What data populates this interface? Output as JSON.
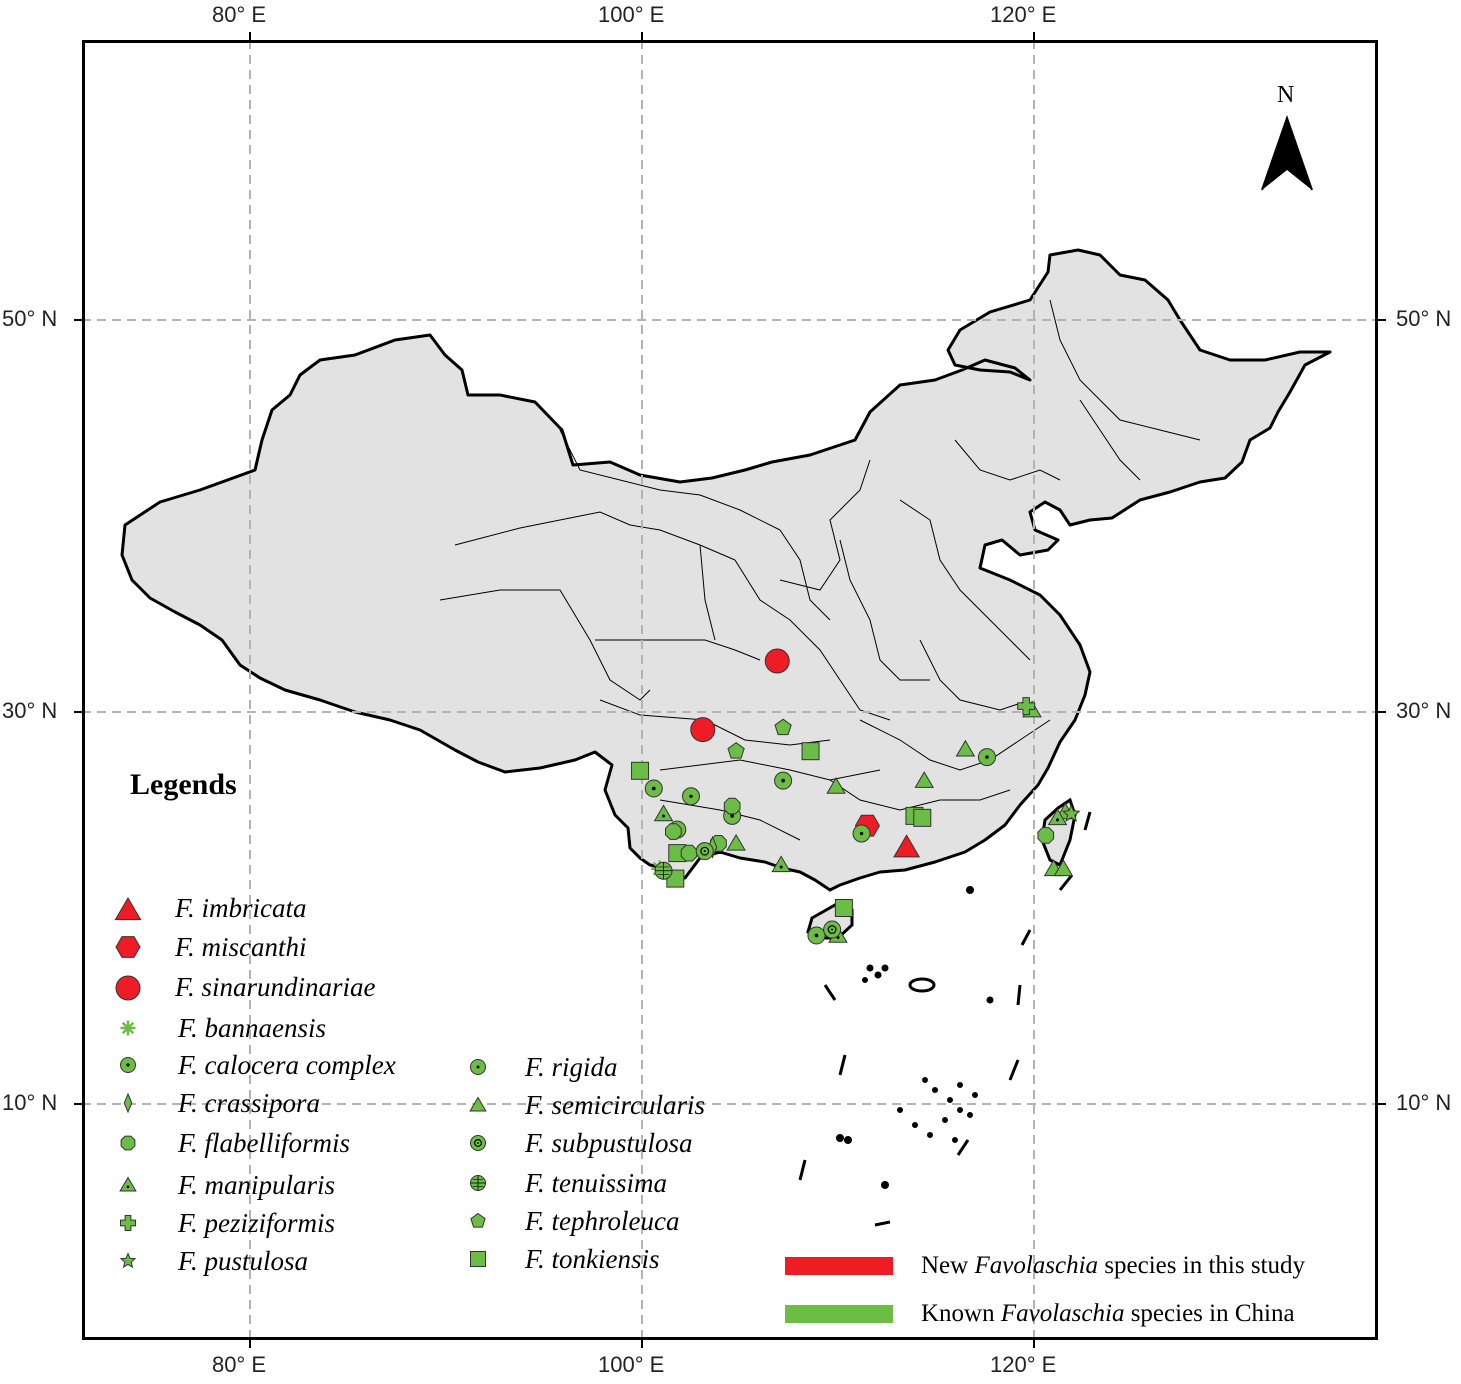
{
  "axes": {
    "top_longitudes": [
      "80° E",
      "100° E",
      "120° E"
    ],
    "bottom_longitudes": [
      "80° E",
      "100° E",
      "120° E"
    ],
    "left_latitudes": [
      "50° N",
      "30° N",
      "10° N"
    ],
    "right_latitudes": [
      "50° N",
      "30° N",
      "10° N"
    ]
  },
  "north_arrow": {
    "label": "N"
  },
  "legend": {
    "title": "Legends",
    "new_species": [
      {
        "name": "F. imbricata",
        "symbol": "triangle"
      },
      {
        "name": "F. miscanthi",
        "symbol": "hexagon"
      },
      {
        "name": "F. sinarundinariae",
        "symbol": "circle"
      }
    ],
    "known_col1": [
      {
        "name": "F. bannaensis",
        "symbol": "asterisk"
      },
      {
        "name": "F. calocera complex",
        "symbol": "dot-circle"
      },
      {
        "name": "F. crassipora",
        "symbol": "diamond"
      },
      {
        "name": "F. flabelliformis",
        "symbol": "octagon"
      },
      {
        "name": "F. manipularis",
        "symbol": "dot-triangle"
      },
      {
        "name": "F. peziziformis",
        "symbol": "cross"
      },
      {
        "name": "F. pustulosa",
        "symbol": "star"
      }
    ],
    "known_col2": [
      {
        "name": "F. rigida",
        "symbol": "star-circle"
      },
      {
        "name": "F. semicircularis",
        "symbol": "triangle"
      },
      {
        "name": "F. subpustulosa",
        "symbol": "ring-circle"
      },
      {
        "name": "F. tenuissima",
        "symbol": "grid-circle"
      },
      {
        "name": "F. tephroleuca",
        "symbol": "pentagon"
      },
      {
        "name": "F. tonkiensis",
        "symbol": "square"
      }
    ],
    "bars": [
      {
        "pre": "New ",
        "genus": "Favolaschia",
        "post": " species in this study",
        "color": "#ee1c24"
      },
      {
        "pre": "Known ",
        "genus": "Favolaschia",
        "post": " species in China",
        "color": "#6cbd45"
      }
    ]
  },
  "colors": {
    "new": "#ee1c24",
    "known": "#6cbd45",
    "land": "#e2e2e2",
    "grid": "#b3b3b3"
  },
  "occurrences": [
    {
      "species": "F. sinarundinariae",
      "lon": 106.9,
      "lat": 32.6
    },
    {
      "species": "F. sinarundinariae",
      "lon": 103.1,
      "lat": 29.1
    },
    {
      "species": "F. miscanthi",
      "lon": 111.5,
      "lat": 24.2
    },
    {
      "species": "F. imbricata",
      "lon": 113.5,
      "lat": 23.1
    },
    {
      "species": "F. tonkiensis",
      "lon": 99.9,
      "lat": 27.0
    },
    {
      "species": "F. tonkiensis",
      "lon": 108.6,
      "lat": 28.0
    },
    {
      "species": "F. tonkiensis",
      "lon": 101.8,
      "lat": 22.8
    },
    {
      "species": "F. tonkiensis",
      "lon": 101.7,
      "lat": 21.5
    },
    {
      "species": "F. tonkiensis",
      "lon": 110.3,
      "lat": 20.0
    },
    {
      "species": "F. tonkiensis",
      "lon": 113.9,
      "lat": 24.7
    },
    {
      "species": "F. tonkiensis",
      "lon": 114.3,
      "lat": 24.6
    },
    {
      "species": "F. tephroleuca",
      "lon": 107.2,
      "lat": 29.2
    },
    {
      "species": "F. tephroleuca",
      "lon": 104.8,
      "lat": 28.0
    },
    {
      "species": "F. calocera complex",
      "lon": 100.6,
      "lat": 26.1
    },
    {
      "species": "F. calocera complex",
      "lon": 107.2,
      "lat": 26.5
    },
    {
      "species": "F. calocera complex",
      "lon": 104.6,
      "lat": 24.7
    },
    {
      "species": "F. calocera complex",
      "lon": 108.9,
      "lat": 18.6
    },
    {
      "species": "F. rigida",
      "lon": 102.5,
      "lat": 25.7
    },
    {
      "species": "F. rigida",
      "lon": 101.8,
      "lat": 24.0
    },
    {
      "species": "F. rigida",
      "lon": 117.6,
      "lat": 27.7
    },
    {
      "species": "F. rigida",
      "lon": 111.2,
      "lat": 23.8
    },
    {
      "species": "F. flabelliformis",
      "lon": 104.6,
      "lat": 25.2
    },
    {
      "species": "F. flabelliformis",
      "lon": 101.6,
      "lat": 23.9
    },
    {
      "species": "F. flabelliformis",
      "lon": 102.4,
      "lat": 22.8
    },
    {
      "species": "F. flabelliformis",
      "lon": 103.9,
      "lat": 23.3
    },
    {
      "species": "F. flabelliformis",
      "lon": 120.6,
      "lat": 23.7
    },
    {
      "species": "F. semicircularis",
      "lon": 109.9,
      "lat": 26.2
    },
    {
      "species": "F. semicircularis",
      "lon": 114.4,
      "lat": 26.5
    },
    {
      "species": "F. semicircularis",
      "lon": 116.5,
      "lat": 28.1
    },
    {
      "species": "F. semicircularis",
      "lon": 104.8,
      "lat": 23.3
    },
    {
      "species": "F. semicircularis",
      "lon": 119.9,
      "lat": 30.1
    },
    {
      "species": "F. semicircularis",
      "lon": 121.0,
      "lat": 22.0
    },
    {
      "species": "F. semicircularis",
      "lon": 121.5,
      "lat": 22.0
    },
    {
      "species": "F. semicircularis",
      "lon": 121.6,
      "lat": 24.9
    },
    {
      "species": "F. manipularis",
      "lon": 101.1,
      "lat": 24.8
    },
    {
      "species": "F. manipularis",
      "lon": 107.1,
      "lat": 22.2
    },
    {
      "species": "F. manipularis",
      "lon": 110.0,
      "lat": 18.6
    },
    {
      "species": "F. manipularis",
      "lon": 121.2,
      "lat": 24.6
    },
    {
      "species": "F. bannaensis",
      "lon": 100.9,
      "lat": 22.0
    },
    {
      "species": "F. crassipora",
      "lon": 103.6,
      "lat": 23.1
    },
    {
      "species": "F. subpustulosa",
      "lon": 109.7,
      "lat": 18.9
    },
    {
      "species": "F. subpustulosa",
      "lon": 103.2,
      "lat": 22.9
    },
    {
      "species": "F. tenuissima",
      "lon": 101.1,
      "lat": 21.9
    },
    {
      "species": "F. peziziformis",
      "lon": 119.6,
      "lat": 30.3
    },
    {
      "species": "F. pustulosa",
      "lon": 121.9,
      "lat": 24.8
    }
  ]
}
